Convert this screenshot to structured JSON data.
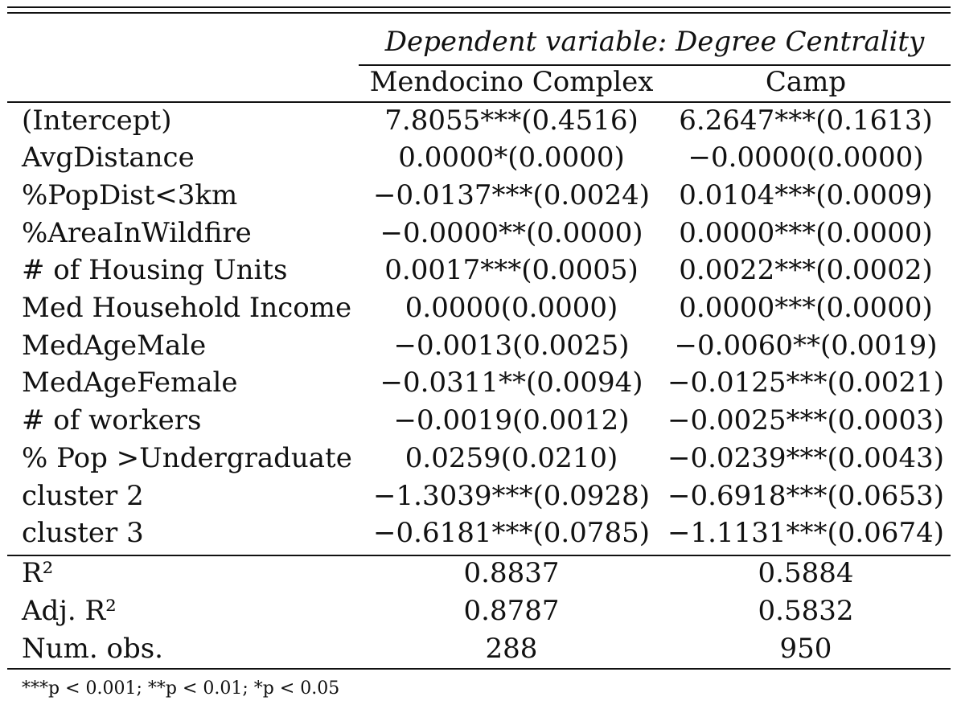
{
  "table": {
    "dependent_variable_header": "Dependent variable: Degree Centrality",
    "columns": [
      "Mendocino Complex",
      "Camp"
    ],
    "coefficient_rows": [
      {
        "label": "(Intercept)",
        "values": [
          "7.8055***(0.4516)",
          "6.2647***(0.1613)"
        ]
      },
      {
        "label": "AvgDistance",
        "values": [
          "0.0000*(0.0000)",
          "−0.0000(0.0000)"
        ]
      },
      {
        "label": "%PopDist<3km",
        "values": [
          "−0.0137***(0.0024)",
          "0.0104***(0.0009)"
        ]
      },
      {
        "label": "%AreaInWildfire",
        "values": [
          "−0.0000**(0.0000)",
          "0.0000***(0.0000)"
        ]
      },
      {
        "label": "# of Housing Units",
        "values": [
          "0.0017***(0.0005)",
          "0.0022***(0.0002)"
        ]
      },
      {
        "label": "Med Household Income",
        "values": [
          "0.0000(0.0000)",
          "0.0000***(0.0000)"
        ]
      },
      {
        "label": "MedAgeMale",
        "values": [
          "−0.0013(0.0025)",
          "−0.0060**(0.0019)"
        ]
      },
      {
        "label": "MedAgeFemale",
        "values": [
          "−0.0311**(0.0094)",
          "−0.0125***(0.0021)"
        ]
      },
      {
        "label": "# of workers",
        "values": [
          "−0.0019(0.0012)",
          "−0.0025***(0.0003)"
        ]
      },
      {
        "label": "% Pop >Undergraduate",
        "values": [
          "0.0259(0.0210)",
          "−0.0239***(0.0043)"
        ]
      },
      {
        "label": "cluster 2",
        "values": [
          "−1.3039***(0.0928)",
          "−0.6918***(0.0653)"
        ]
      },
      {
        "label": "cluster 3",
        "values": [
          "−0.6181***(0.0785)",
          "−1.1131***(0.0674)"
        ]
      }
    ],
    "stat_rows": [
      {
        "label": "R²",
        "values": [
          "0.8837",
          "0.5884"
        ]
      },
      {
        "label": "Adj. R²",
        "values": [
          "0.8787",
          "0.5832"
        ]
      },
      {
        "label": "Num. obs.",
        "values": [
          "288",
          "950"
        ]
      }
    ],
    "footnote": "***p < 0.001; **p < 0.01; *p < 0.05"
  }
}
